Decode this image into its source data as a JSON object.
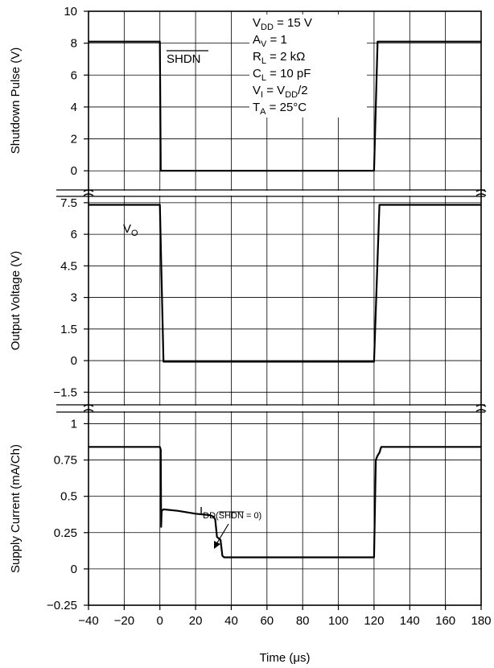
{
  "chart_data": {
    "type": "line",
    "xlabel": "Time (μs)",
    "xlim": [
      -40,
      180
    ],
    "xticks": [
      "−40",
      "−20",
      "0",
      "20",
      "40",
      "60",
      "80",
      "100",
      "120",
      "140",
      "160",
      "180"
    ],
    "panels": [
      {
        "ylabel": "Shutdown Pulse (V)",
        "ylim": [
          -1.2,
          10
        ],
        "yticks": [
          "0",
          "2",
          "4",
          "6",
          "8",
          "10"
        ],
        "series": [
          {
            "name": "SHDN",
            "x": [
              -40,
              0,
              0.5,
              120,
              122,
              180
            ],
            "y": [
              8.1,
              8.1,
              0,
              0,
              8.1,
              8.1
            ]
          }
        ]
      },
      {
        "ylabel": "Output  Voltage (V)",
        "ylim": [
          -2.1,
          7.8
        ],
        "yticks": [
          "−1.5",
          "0",
          "1.5",
          "3",
          "4.5",
          "6",
          "7.5"
        ],
        "series": [
          {
            "name": "VO",
            "x": [
              -40,
              0,
              2,
              120,
              123,
              180
            ],
            "y": [
              7.4,
              7.4,
              -0.05,
              -0.05,
              7.4,
              7.4
            ]
          }
        ]
      },
      {
        "ylabel": "Supply Current (mA/Ch)",
        "ylim": [
          -0.25,
          1.08
        ],
        "yticks": [
          "−0.25",
          "0",
          "0.25",
          "0.5",
          "0.75",
          "1"
        ],
        "series": [
          {
            "name": "IDD(SHDN = 0)",
            "x": [
              -40,
              0,
              0.5,
              0.7,
              1,
              2,
              10,
              20,
              28,
              30,
              31,
              32,
              33,
              34,
              35,
              36,
              40,
              60,
              80,
              100,
              120,
              121,
              122,
              123,
              124,
              140,
              160,
              180
            ],
            "y": [
              0.84,
              0.84,
              0.82,
              0.29,
              0.4,
              0.41,
              0.4,
              0.38,
              0.37,
              0.36,
              0.34,
              0.22,
              0.21,
              0.2,
              0.09,
              0.08,
              0.08,
              0.08,
              0.08,
              0.08,
              0.08,
              0.75,
              0.78,
              0.8,
              0.84,
              0.84,
              0.84,
              0.84
            ]
          }
        ]
      }
    ],
    "annotations": {
      "shdn": "SHDN",
      "vo_main": "V",
      "vo_sub": "O",
      "idd_main": "I",
      "idd_sub_pre": "DD(",
      "idd_sub_over": "SHDN",
      "idd_sub_post": " = 0)",
      "conditions": [
        {
          "main": "V",
          "sub": "DD",
          "rest": " = 15 V"
        },
        {
          "main": "A",
          "sub": "V",
          "rest": " = 1"
        },
        {
          "main": "R",
          "sub": "L",
          "rest": " = 2 kΩ"
        },
        {
          "main": "C",
          "sub": "L",
          "rest": " = 10 pF"
        },
        {
          "main": "V",
          "sub": "I",
          "rest": " = V",
          "sub2": "DD",
          "rest2": "/2"
        },
        {
          "main": "T",
          "sub": "A",
          "rest": " = 25°C"
        }
      ]
    }
  }
}
